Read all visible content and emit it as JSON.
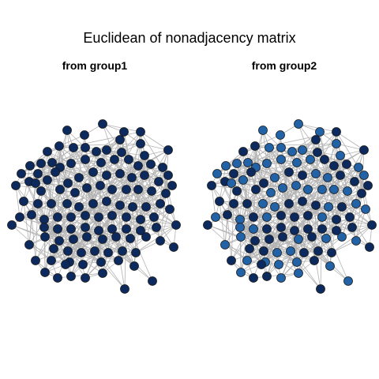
{
  "title": "Euclidean of nonadjacency matrix",
  "panels": [
    {
      "subtitle": "from group1"
    },
    {
      "subtitle": "from group2"
    }
  ],
  "colors": {
    "edge": "#b3b3b3",
    "node_outline": "#1a1a1a",
    "dark_node": "#0d2a5e",
    "light_node": "#2263a8"
  }
}
